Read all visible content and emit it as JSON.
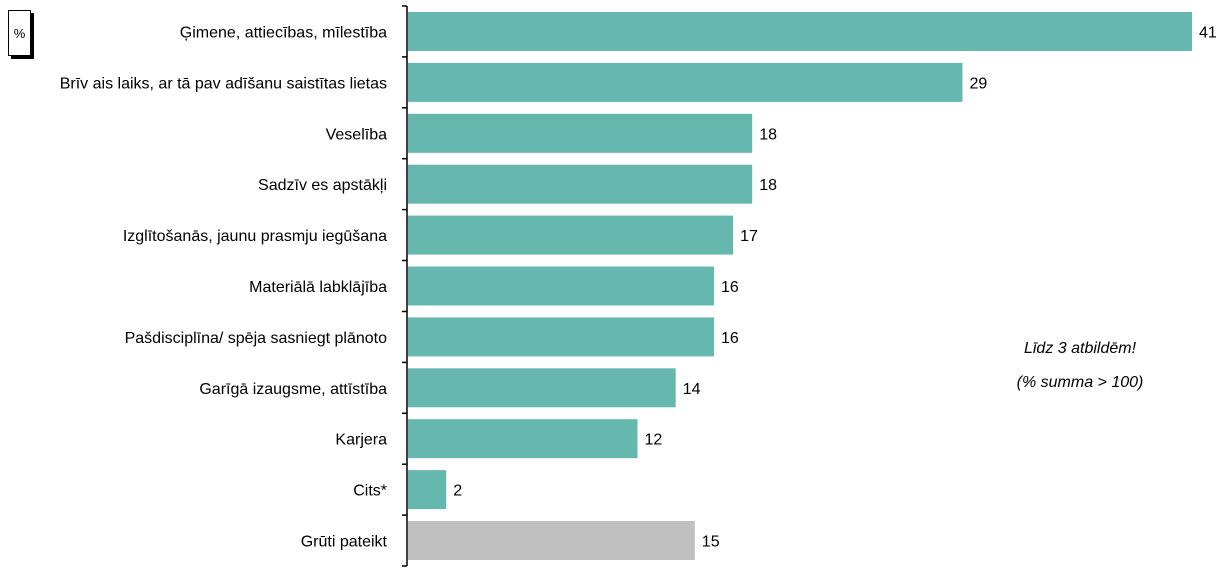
{
  "chart_data": {
    "type": "bar",
    "orientation": "horizontal",
    "unit_label": "%",
    "categories": [
      "Ģimene, attiecības, mīlestība",
      "Brīv ais laiks, ar tā pav adīšanu saistītas lietas",
      "Veselība",
      "Sadzīv es apstākļi",
      "Izglītošanās, jaunu prasmju iegūšana",
      "Materiālā labklājība",
      "Pašdisciplīna/ spēja sasniegt plānoto",
      "Garīgā izaugsme, attīstība",
      "Karjera",
      "Cits*",
      "Grūti pateikt"
    ],
    "values": [
      41,
      29,
      18,
      18,
      17,
      16,
      16,
      14,
      12,
      2,
      15
    ],
    "bar_colors": [
      "#66b8ae",
      "#66b8ae",
      "#66b8ae",
      "#66b8ae",
      "#66b8ae",
      "#66b8ae",
      "#66b8ae",
      "#66b8ae",
      "#66b8ae",
      "#66b8ae",
      "#c0c0c0"
    ],
    "xlim": [
      0,
      41
    ],
    "grid": false,
    "legend": "none",
    "notes": [
      "Līdz 3 atbildēm!",
      "(% summa > 100)"
    ]
  }
}
